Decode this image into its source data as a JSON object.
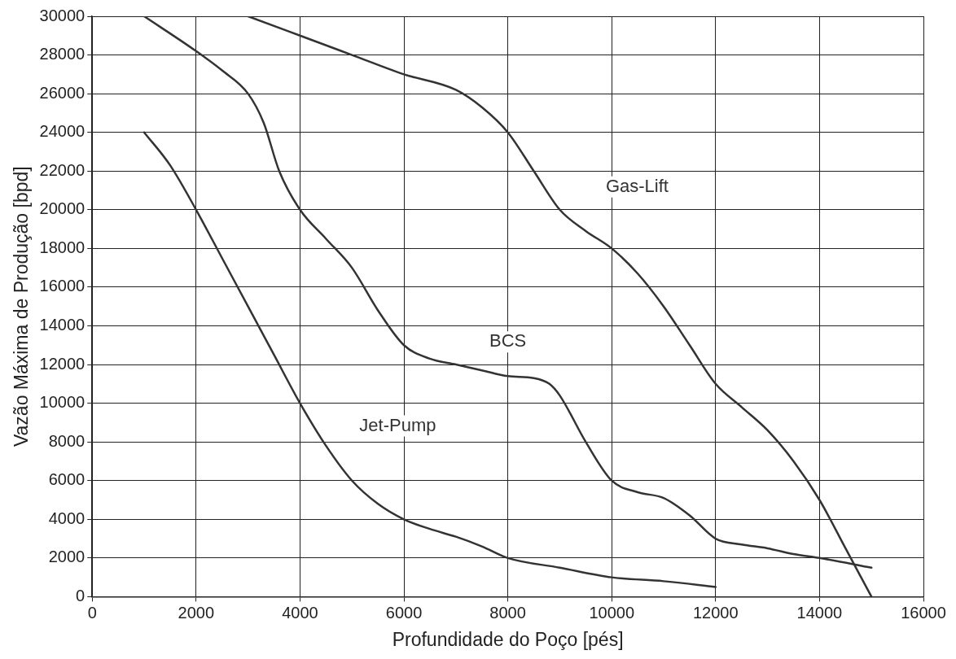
{
  "chart_data": {
    "type": "line",
    "xlabel": "Profundidade do Poço [pés]",
    "ylabel": "Vazão Máxima de Produção [bpd]",
    "xlim": [
      0,
      16000
    ],
    "xticks": [
      0,
      2000,
      4000,
      6000,
      8000,
      10000,
      12000,
      14000,
      16000
    ],
    "ylim": [
      0,
      30000
    ],
    "yticks": [
      0,
      2000,
      4000,
      6000,
      8000,
      10000,
      12000,
      14000,
      16000,
      18000,
      20000,
      22000,
      24000,
      26000,
      28000,
      30000
    ],
    "grid": true,
    "marker": "none",
    "line_style": "solid",
    "series": [
      {
        "name": "Gas-Lift",
        "color": "#333333",
        "x": [
          3000,
          4000,
          5000,
          6000,
          7000,
          7500,
          8000,
          8500,
          9000,
          9500,
          10000,
          10500,
          11000,
          11500,
          12000,
          12500,
          13000,
          13500,
          14000,
          14500,
          15000
        ],
        "values": [
          30000,
          29000,
          28000,
          27000,
          26200,
          25300,
          24000,
          22000,
          20000,
          18900,
          18000,
          16700,
          15000,
          13000,
          11000,
          9800,
          8600,
          7000,
          5000,
          2500,
          0
        ]
      },
      {
        "name": "BCS",
        "color": "#333333",
        "x": [
          1000,
          2000,
          2500,
          3000,
          3300,
          3600,
          4000,
          4500,
          5000,
          5500,
          6000,
          6500,
          7000,
          7500,
          8000,
          8500,
          8800,
          9000,
          9500,
          10000,
          10500,
          11000,
          11500,
          12000,
          12500,
          13000,
          13500,
          14000,
          15000
        ],
        "values": [
          30000,
          28200,
          27200,
          26000,
          24500,
          22000,
          20000,
          18500,
          17000,
          14800,
          13000,
          12300,
          12000,
          11700,
          11400,
          11300,
          11000,
          10400,
          8000,
          6000,
          5400,
          5100,
          4200,
          3000,
          2700,
          2500,
          2200,
          2000,
          1500
        ]
      },
      {
        "name": "Jet-Pump",
        "color": "#333333",
        "x": [
          1000,
          1500,
          2000,
          2500,
          3000,
          3500,
          4000,
          4500,
          5000,
          5500,
          6000,
          6500,
          7000,
          7500,
          8000,
          9000,
          10000,
          11000,
          12000
        ],
        "values": [
          24000,
          22300,
          20000,
          17500,
          15000,
          12500,
          10000,
          7800,
          6000,
          4800,
          4000,
          3500,
          3100,
          2600,
          2000,
          1500,
          1000,
          800,
          500
        ]
      }
    ]
  }
}
